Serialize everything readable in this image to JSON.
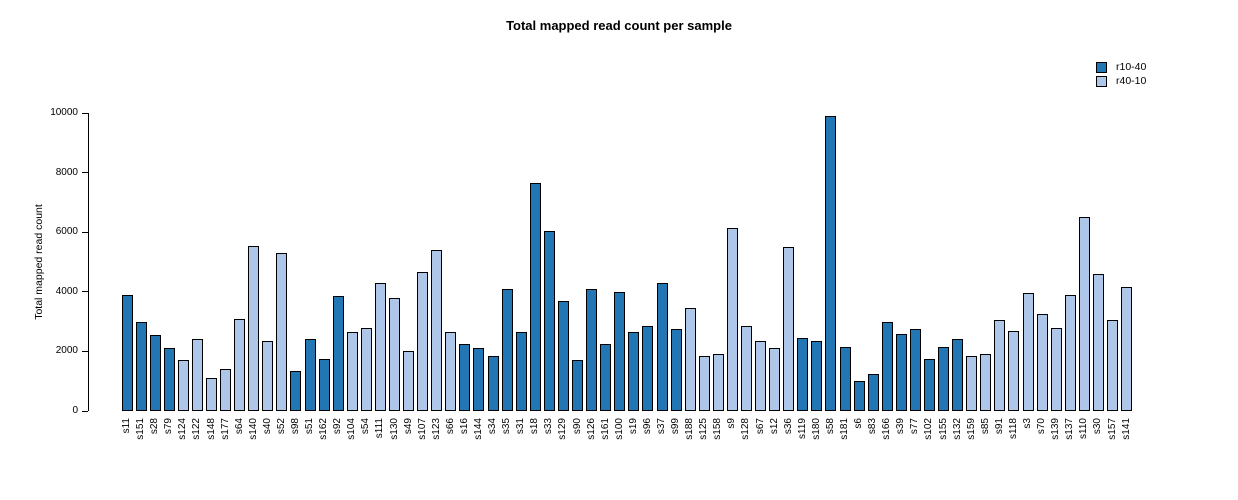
{
  "title": "Total mapped read count per sample",
  "y_axis": {
    "label": "Total mapped read count",
    "ticks": [
      0,
      2000,
      4000,
      6000,
      8000,
      10000
    ],
    "max": 10000
  },
  "legend": [
    {
      "label": "r10-40",
      "color": "#2276B4"
    },
    {
      "label": "r40-10",
      "color": "#AEC6E8"
    }
  ],
  "chart_data": {
    "type": "bar",
    "title": "Total mapped read count per sample",
    "xlabel": "",
    "ylabel": "Total mapped read count",
    "ylim": [
      0,
      10000
    ],
    "grid": false,
    "legend_position": "top-right",
    "categories": [
      "s11",
      "s151",
      "s28",
      "s79",
      "s124",
      "s122",
      "s148",
      "s177",
      "s64",
      "s140",
      "s40",
      "s52",
      "s98",
      "s51",
      "s162",
      "s92",
      "s104",
      "s54",
      "s111",
      "s130",
      "s49",
      "s107",
      "s123",
      "s66",
      "s16",
      "s144",
      "s34",
      "s35",
      "s31",
      "s18",
      "s33",
      "s129",
      "s90",
      "s126",
      "s161",
      "s100",
      "s19",
      "s96",
      "s37",
      "s99",
      "s188",
      "s125",
      "s158",
      "s9",
      "s128",
      "s67",
      "s12",
      "s36",
      "s119",
      "s180",
      "s58",
      "s181",
      "s6",
      "s83",
      "s166",
      "s39",
      "s77",
      "s102",
      "s155",
      "s132",
      "s159",
      "s85",
      "s91",
      "s118",
      "s3",
      "s70",
      "s139",
      "s137",
      "s110",
      "s30",
      "s157",
      "s141"
    ],
    "values": [
      3900,
      3000,
      2550,
      2100,
      1700,
      2400,
      1100,
      1400,
      3100,
      5550,
      2350,
      5300,
      1350,
      2400,
      1750,
      3850,
      2650,
      2800,
      4300,
      3800,
      2000,
      4650,
      5400,
      2650,
      2250,
      2100,
      1850,
      4100,
      2650,
      7650,
      6050,
      3700,
      1700,
      4100,
      2250,
      4000,
      2650,
      2850,
      4300,
      2750,
      3450,
      1850,
      1900,
      6150,
      2850,
      2350,
      2100,
      5500,
      2450,
      2350,
      9900,
      2150,
      1000,
      1250,
      3000,
      2600,
      2750,
      1750,
      2150,
      2400,
      1850,
      1900,
      3050,
      2700,
      3950,
      3250,
      2800,
      3900,
      6500,
      4600,
      3050,
      4150
    ],
    "groups": [
      "r10-40",
      "r10-40",
      "r10-40",
      "r10-40",
      "r40-10",
      "r40-10",
      "r40-10",
      "r40-10",
      "r40-10",
      "r40-10",
      "r40-10",
      "r40-10",
      "r10-40",
      "r10-40",
      "r10-40",
      "r10-40",
      "r40-10",
      "r40-10",
      "r40-10",
      "r40-10",
      "r40-10",
      "r40-10",
      "r40-10",
      "r40-10",
      "r10-40",
      "r10-40",
      "r10-40",
      "r10-40",
      "r10-40",
      "r10-40",
      "r10-40",
      "r10-40",
      "r10-40",
      "r10-40",
      "r10-40",
      "r10-40",
      "r10-40",
      "r10-40",
      "r10-40",
      "r10-40",
      "r40-10",
      "r40-10",
      "r40-10",
      "r40-10",
      "r40-10",
      "r40-10",
      "r40-10",
      "r40-10",
      "r10-40",
      "r10-40",
      "r10-40",
      "r10-40",
      "r10-40",
      "r10-40",
      "r10-40",
      "r10-40",
      "r10-40",
      "r10-40",
      "r10-40",
      "r10-40",
      "r40-10",
      "r40-10",
      "r40-10",
      "r40-10",
      "r40-10",
      "r40-10",
      "r40-10",
      "r40-10",
      "r40-10",
      "r40-10",
      "r40-10",
      "r40-10"
    ],
    "series_colors": {
      "r10-40": "#2276B4",
      "r40-10": "#AEC6E8"
    }
  }
}
